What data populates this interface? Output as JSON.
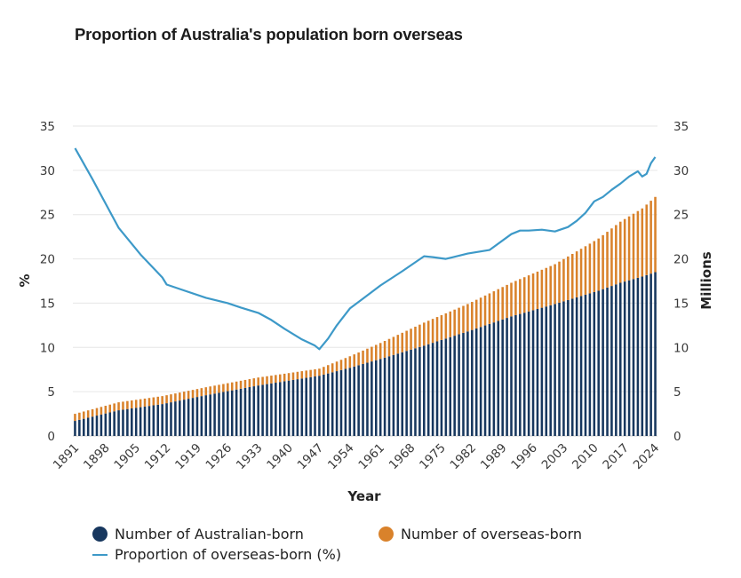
{
  "title": "Proportion of Australia's population born overseas",
  "chart_data": {
    "type": "bar+line",
    "title": "Proportion of Australia's population born overseas",
    "xlabel": "Year",
    "ylabel_left": "%",
    "ylabel_right": "Millions",
    "ylim_left": [
      0,
      35
    ],
    "ylim_right": [
      0,
      35
    ],
    "yticks": [
      "0",
      "5",
      "10",
      "15",
      "20",
      "25",
      "30",
      "35"
    ],
    "xtick_labels": [
      "1891",
      "1898",
      "1905",
      "1912",
      "1919",
      "1926",
      "1933",
      "1940",
      "1947",
      "1954",
      "1961",
      "1968",
      "1975",
      "1982",
      "1989",
      "1996",
      "2003",
      "2010",
      "2017",
      "2024"
    ],
    "colors": {
      "australian_born": "#17375e",
      "overseas_born": "#d9822b",
      "proportion": "#3d99c8"
    },
    "bar_anchors": {
      "years": [
        1891,
        1901,
        1911,
        1921,
        1933,
        1947,
        1954,
        1961,
        1971,
        1981,
        1991,
        2001,
        2011,
        2016,
        2021,
        2024
      ],
      "australian_born": [
        1.7,
        2.9,
        3.6,
        4.6,
        5.7,
        6.8,
        7.7,
        8.7,
        10.2,
        11.8,
        13.5,
        14.9,
        16.4,
        17.3,
        18.0,
        18.5
      ],
      "total_population": [
        2.5,
        3.8,
        4.5,
        5.5,
        6.6,
        7.6,
        9.0,
        10.5,
        12.8,
        14.9,
        17.3,
        19.4,
        22.3,
        24.2,
        25.7,
        27.0
      ]
    },
    "series": [
      {
        "name": "Number of Australian-born",
        "kind": "bar",
        "axis": "right"
      },
      {
        "name": "Number of overseas-born",
        "kind": "bar",
        "axis": "right"
      },
      {
        "name": "Proportion of overseas-born (%)",
        "kind": "line",
        "axis": "left",
        "x": [
          1891,
          1895,
          1901,
          1906,
          1911,
          1912,
          1915,
          1921,
          1926,
          1929,
          1933,
          1936,
          1939,
          1943,
          1946,
          1947,
          1949,
          1951,
          1954,
          1957,
          1961,
          1966,
          1971,
          1973,
          1976,
          1981,
          1986,
          1991,
          1993,
          1995,
          1998,
          2001,
          2004,
          2006,
          2008,
          2010,
          2012,
          2014,
          2016,
          2018,
          2020,
          2021,
          2022,
          2023,
          2024
        ],
        "values": [
          32.5,
          29.0,
          23.5,
          20.5,
          17.9,
          17.1,
          16.6,
          15.6,
          15.0,
          14.5,
          13.9,
          13.1,
          12.1,
          10.9,
          10.2,
          9.8,
          11.0,
          12.5,
          14.4,
          15.5,
          17.0,
          18.6,
          20.3,
          20.2,
          20.0,
          20.6,
          21.0,
          22.8,
          23.2,
          23.2,
          23.3,
          23.1,
          23.6,
          24.3,
          25.2,
          26.5,
          27.0,
          27.8,
          28.5,
          29.3,
          29.9,
          29.3,
          29.6,
          30.8,
          31.5
        ]
      }
    ],
    "x_range": [
      1891,
      2024
    ]
  },
  "legend": {
    "australian_born": "Number of Australian-born",
    "overseas_born": "Number of overseas-born",
    "proportion": "Proportion of overseas-born (%)"
  }
}
